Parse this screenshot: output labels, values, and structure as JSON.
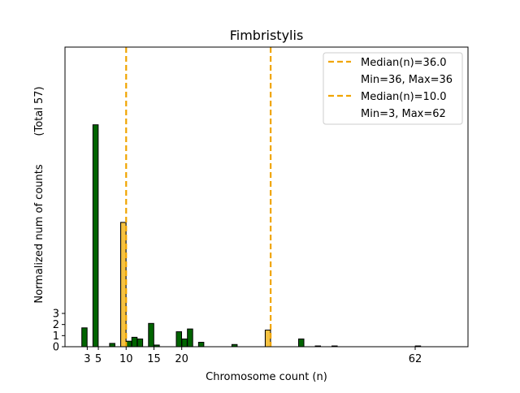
{
  "chart_data": {
    "type": "bar",
    "title": "Fimbristylis",
    "xlabel": "Chromosome count (n)",
    "ylabel": "Normalized num of counts",
    "ylabel_note": "(Total 57)",
    "xlim": [
      -1.5,
      71
    ],
    "ylim": [
      0,
      27
    ],
    "xticks": [
      3,
      5,
      10,
      15,
      20,
      62
    ],
    "yticks": [
      0,
      1,
      2,
      3
    ],
    "grid": false,
    "legend_position": "top-right",
    "series": [
      {
        "name": "counts",
        "color": "#006400",
        "edgecolor": "#000000",
        "bars": [
          {
            "x": 2,
            "y": 1.7
          },
          {
            "x": 4,
            "y": 20
          },
          {
            "x": 7,
            "y": 0.3
          },
          {
            "x": 9,
            "y": 11.2
          },
          {
            "x": 10,
            "y": 0.5
          },
          {
            "x": 11,
            "y": 0.85
          },
          {
            "x": 12,
            "y": 0.7
          },
          {
            "x": 14,
            "y": 2.1
          },
          {
            "x": 15,
            "y": 0.15
          },
          {
            "x": 19,
            "y": 1.35
          },
          {
            "x": 20,
            "y": 0.7
          },
          {
            "x": 21,
            "y": 1.6
          },
          {
            "x": 23,
            "y": 0.4
          },
          {
            "x": 29,
            "y": 0.2
          },
          {
            "x": 35,
            "y": 1.5
          },
          {
            "x": 41,
            "y": 0.7
          },
          {
            "x": 44,
            "y": 0.07
          },
          {
            "x": 47,
            "y": 0.07
          },
          {
            "x": 62,
            "y": 0.07
          }
        ]
      },
      {
        "name": "highlight",
        "color": "#f5c242",
        "edgecolor": "#000000",
        "bars": [
          {
            "x": 9,
            "y": 11.2
          },
          {
            "x": 35,
            "y": 1.5
          }
        ]
      }
    ],
    "medians": [
      {
        "x": 35.5,
        "label": "Median(n)=36.0",
        "range_label": "Min=36, Max=36",
        "color": "#f0a500"
      },
      {
        "x": 9.5,
        "label": "Median(n)=10.0",
        "range_label": "Min=3, Max=62",
        "color": "#f0a500"
      }
    ]
  }
}
